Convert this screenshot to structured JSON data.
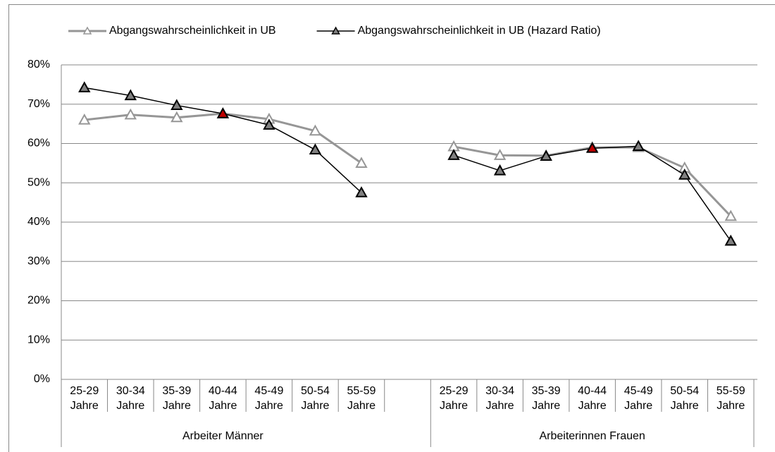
{
  "chart_data": {
    "type": "line",
    "categories": [
      "25-29 Jahre",
      "30-34 Jahre",
      "35-39 Jahre",
      "40-44 Jahre",
      "45-49 Jahre",
      "50-54 Jahre",
      "55-59 Jahre",
      null,
      "25-29 Jahre",
      "30-34 Jahre",
      "35-39 Jahre",
      "40-44 Jahre",
      "45-49 Jahre",
      "50-54 Jahre",
      "55-59 Jahre"
    ],
    "groups": [
      "Arbeiter Männer",
      "Arbeiterinnen Frauen"
    ],
    "series": [
      {
        "name": "Abgangswahrscheinlichkeit in UB",
        "color": "#969696",
        "marker_fill": "#ffffff",
        "line_width": 3,
        "values": [
          66.0,
          67.3,
          66.6,
          67.6,
          66.2,
          63.2,
          55.0,
          null,
          59.2,
          57.0,
          56.9,
          59.0,
          59.0,
          53.8,
          41.5
        ]
      },
      {
        "name": "Abgangswahrscheinlichkeit in UB (Hazard Ratio)",
        "color": "#000000",
        "marker_fill": "#808080",
        "line_width": 1.5,
        "highlight": {
          "indices": [
            3,
            11
          ],
          "color": "#c00000"
        },
        "values": [
          74.2,
          72.2,
          69.7,
          67.6,
          64.7,
          58.4,
          47.5,
          null,
          57.0,
          53.1,
          56.8,
          58.8,
          59.3,
          52.0,
          35.2
        ]
      }
    ],
    "ylim": [
      0,
      80
    ],
    "yticks": [
      {
        "value": 0,
        "label": "0%"
      },
      {
        "value": 10,
        "label": "10%"
      },
      {
        "value": 20,
        "label": "20%"
      },
      {
        "value": 30,
        "label": "30%"
      },
      {
        "value": 40,
        "label": "40%"
      },
      {
        "value": 50,
        "label": "50%"
      },
      {
        "value": 60,
        "label": "60%"
      },
      {
        "value": 70,
        "label": "70%"
      },
      {
        "value": 80,
        "label": "80%"
      }
    ],
    "grid": true,
    "legend": "top"
  }
}
